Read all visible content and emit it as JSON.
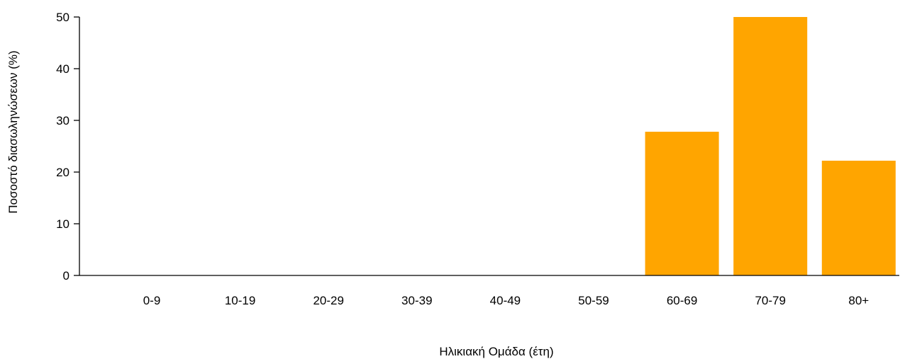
{
  "chart_data": {
    "type": "bar",
    "title": "",
    "xlabel": "Ηλικιακή Ομάδα (έτη)",
    "ylabel": "Ποσοστό διασωληνώσεων (%)",
    "categories": [
      "0-9",
      "10-19",
      "20-29",
      "30-39",
      "40-49",
      "50-59",
      "60-69",
      "70-79",
      "80+"
    ],
    "values": [
      0,
      0,
      0,
      0,
      0,
      0,
      27.8,
      50,
      22.2
    ],
    "ylim": [
      0,
      50
    ],
    "yticks": [
      "0",
      "10",
      "20",
      "30",
      "40",
      "50"
    ],
    "grid": false,
    "legend": "none",
    "bar_color": "#FFA500",
    "axis_color": "#000000"
  }
}
